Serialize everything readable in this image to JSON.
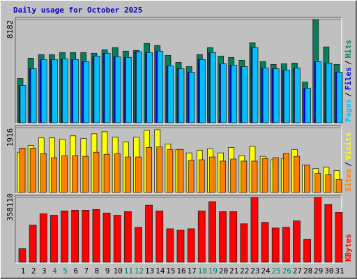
{
  "title": "Daily usage for October 2025",
  "title_color": "#0000c0",
  "legend_separator": "/",
  "chart_data": [
    {
      "type": "bar",
      "ylim": [
        0,
        8182
      ],
      "yticks": [
        8182
      ],
      "series": [
        {
          "name": "Hits",
          "color": "#00805c",
          "values": [
            3507,
            5121,
            5399,
            5399,
            5566,
            5566,
            5566,
            5510,
            5788,
            5956,
            5677,
            5733,
            6290,
            6123,
            5343,
            4787,
            4453,
            5399,
            5956,
            5288,
            5176,
            4954,
            6345,
            4842,
            4620,
            4676,
            4731,
            3228,
            8182,
            6011,
            4620
          ]
        },
        {
          "name": "Files",
          "color": "#0000ff",
          "values": [
            2950,
            4286,
            5009,
            5009,
            5065,
            5009,
            4842,
            5288,
            5510,
            5232,
            5176,
            5621,
            5566,
            5677,
            4509,
            4286,
            4007,
            5009,
            5566,
            4676,
            4564,
            4453,
            5956,
            4342,
            4286,
            4175,
            4342,
            2727,
            4842,
            4731,
            4007
          ]
        },
        {
          "name": "Pages",
          "color": "#00c0ff",
          "values": [
            2950,
            4286,
            5009,
            5009,
            5065,
            5009,
            4842,
            5288,
            5510,
            5232,
            5176,
            5621,
            5566,
            5677,
            4509,
            4286,
            4007,
            5009,
            5566,
            4676,
            4564,
            4453,
            5956,
            4342,
            4286,
            4175,
            4342,
            2727,
            4842,
            4731,
            4007
          ]
        }
      ]
    },
    {
      "type": "bar",
      "ylim": [
        0,
        1916
      ],
      "yticks": [
        1916
      ],
      "series": [
        {
          "name": "Visits",
          "color": "#ffff00",
          "values": [
            1190,
            1392,
            1613,
            1613,
            1573,
            1674,
            1593,
            1734,
            1795,
            1634,
            1492,
            1634,
            1835,
            1855,
            1432,
            1271,
            1170,
            1250,
            1291,
            1170,
            1331,
            1089,
            1371,
            1069,
            968,
            1008,
            1271,
            807,
            706,
            746,
            645
          ]
        },
        {
          "name": "Sites",
          "color": "#ff8000",
          "values": [
            1311,
            1311,
            1150,
            1029,
            1089,
            1089,
            1069,
            1190,
            1129,
            1150,
            1049,
            1049,
            1331,
            1351,
            1271,
            1271,
            948,
            968,
            1049,
            928,
            988,
            928,
            928,
            1008,
            1029,
            1150,
            1069,
            807,
            565,
            524,
            383
          ]
        }
      ]
    },
    {
      "type": "bar",
      "ylim": [
        0,
        358110
      ],
      "yticks": [
        358110
      ],
      "categories": [
        "1",
        "2",
        "3",
        "4",
        "5",
        "6",
        "7",
        "8",
        "9",
        "10",
        "11",
        "12",
        "13",
        "14",
        "15",
        "16",
        "17",
        "18",
        "19",
        "20",
        "21",
        "22",
        "23",
        "24",
        "25",
        "26",
        "27",
        "28",
        "29",
        "30",
        "31"
      ],
      "category_colors": [
        "#000000",
        "#000000",
        "#000000",
        "#00805c",
        "#00805c",
        "#000000",
        "#000000",
        "#000000",
        "#000000",
        "#000000",
        "#00805c",
        "#00805c",
        "#000000",
        "#000000",
        "#000000",
        "#000000",
        "#000000",
        "#00805c",
        "#00805c",
        "#000000",
        "#000000",
        "#000000",
        "#000000",
        "#000000",
        "#00805c",
        "#00805c",
        "#000000",
        "#000000",
        "#000000",
        "#000000",
        "#000000"
      ],
      "series": [
        {
          "name": "KBytes",
          "color": "#ff0000",
          "values": [
            74770,
            204634,
            267600,
            259730,
            283340,
            287275,
            287275,
            291210,
            271535,
            259730,
            279405,
            192830,
            314820,
            283340,
            184960,
            177090,
            184960,
            283340,
            334500,
            279405,
            279405,
            212500,
            358110,
            220370,
            188895,
            192830,
            228240,
            125930,
            358110,
            318755,
            275470
          ]
        }
      ]
    }
  ]
}
